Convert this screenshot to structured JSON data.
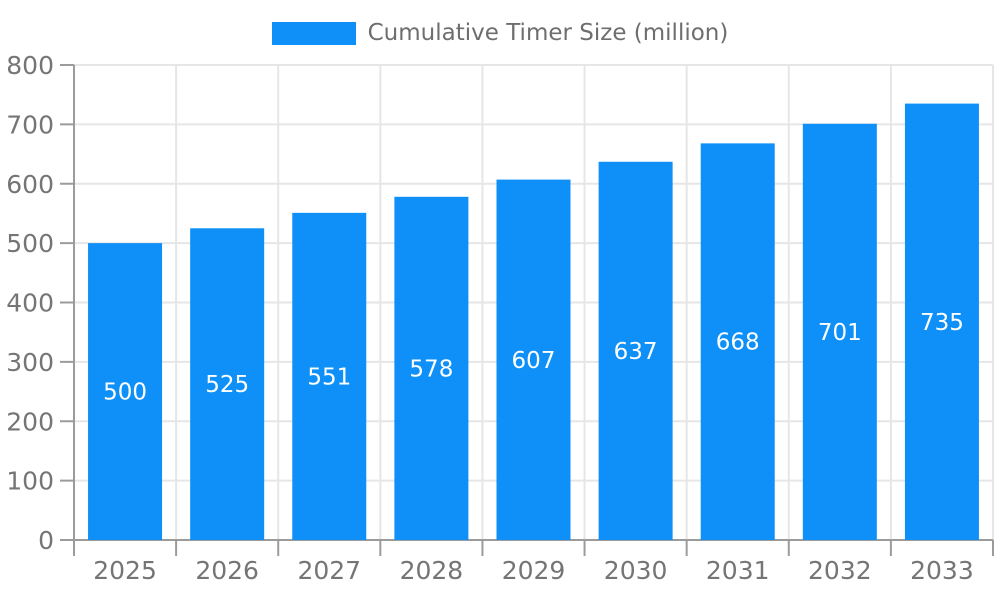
{
  "legend": {
    "label": "Cumulative Timer Size (million)"
  },
  "chart_data": {
    "type": "bar",
    "title": "",
    "xlabel": "",
    "ylabel": "",
    "categories": [
      "2025",
      "2026",
      "2027",
      "2028",
      "2029",
      "2030",
      "2031",
      "2032",
      "2033"
    ],
    "series": [
      {
        "name": "Cumulative Timer Size (million)",
        "values": [
          500,
          525,
          551,
          578,
          607,
          637,
          668,
          701,
          735
        ]
      }
    ],
    "ylim": [
      0,
      800
    ],
    "ytick_step": 100,
    "yticks": [
      0,
      100,
      200,
      300,
      400,
      500,
      600,
      700,
      800
    ],
    "grid": true,
    "legend_position": "top",
    "bar_value_labels_inside": true,
    "colors": {
      "bar": "#0e90f8",
      "grid": "#e6e6e6",
      "axis": "#9b9b9b",
      "tick_label": "#757575",
      "legend_label": "#6e6e6e",
      "bar_label": "#ffffff",
      "background": "#ffffff"
    }
  }
}
